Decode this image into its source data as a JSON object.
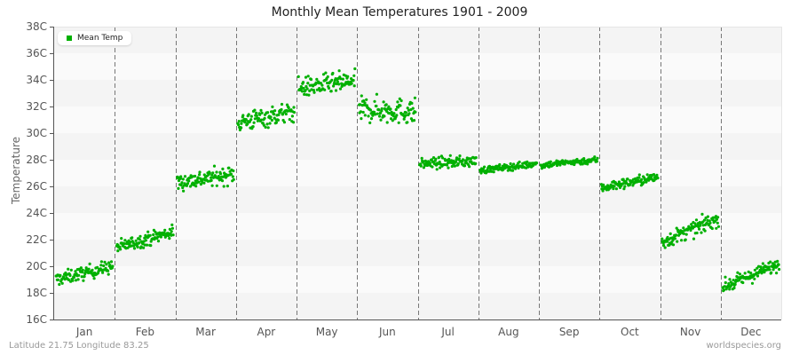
{
  "title": "Monthly Mean Temperatures 1901 - 2009",
  "y_axis_label": "Temperature",
  "legend_label": "Mean Temp",
  "footer_left": "Latitude 21.75 Longitude 83.25",
  "footer_right": "worldspecies.org",
  "colors": {
    "points": "#00b000",
    "band_dark": "#f4f4f4",
    "band_light": "#fafafa",
    "divider": "#777777"
  },
  "chart_data": {
    "type": "scatter",
    "title": "Monthly Mean Temperatures 1901 - 2009",
    "xlabel": "",
    "ylabel": "Temperature",
    "ylim": [
      16,
      38
    ],
    "yticks": [
      "16C",
      "18C",
      "20C",
      "22C",
      "24C",
      "26C",
      "28C",
      "30C",
      "32C",
      "34C",
      "36C",
      "38C"
    ],
    "categories": [
      "Jan",
      "Feb",
      "Mar",
      "Apr",
      "May",
      "Jun",
      "Jul",
      "Aug",
      "Sep",
      "Oct",
      "Nov",
      "Dec"
    ],
    "legend": [
      "Mean Temp"
    ],
    "legend_position": "top-left",
    "grid": "alternating horizontal bands, dashed vertical month dividers",
    "points_per_month": 109,
    "series": [
      {
        "name": "Mean Temp",
        "month_ranges": [
          {
            "month": "Jan",
            "start_mean": 19.0,
            "end_mean": 20.0,
            "spread": 1.6,
            "min": 18.0,
            "max": 21.0
          },
          {
            "month": "Feb",
            "start_mean": 21.4,
            "end_mean": 22.6,
            "spread": 1.6,
            "min": 20.2,
            "max": 23.9
          },
          {
            "month": "Mar",
            "start_mean": 26.3,
            "end_mean": 26.9,
            "spread": 2.0,
            "min": 24.2,
            "max": 28.8
          },
          {
            "month": "Apr",
            "start_mean": 30.8,
            "end_mean": 31.6,
            "spread": 2.4,
            "min": 28.9,
            "max": 33.2
          },
          {
            "month": "May",
            "start_mean": 33.4,
            "end_mean": 33.9,
            "spread": 2.4,
            "min": 31.3,
            "max": 37.0
          },
          {
            "month": "Jun",
            "start_mean": 31.8,
            "end_mean": 31.6,
            "spread": 3.0,
            "min": 28.6,
            "max": 34.5
          },
          {
            "month": "Jul",
            "start_mean": 27.7,
            "end_mean": 27.9,
            "spread": 1.3,
            "min": 26.5,
            "max": 29.6
          },
          {
            "month": "Aug",
            "start_mean": 27.2,
            "end_mean": 27.7,
            "spread": 0.8,
            "min": 26.7,
            "max": 28.7
          },
          {
            "month": "Sep",
            "start_mean": 27.6,
            "end_mean": 28.0,
            "spread": 0.8,
            "min": 27.1,
            "max": 28.9
          },
          {
            "month": "Oct",
            "start_mean": 25.9,
            "end_mean": 26.7,
            "spread": 1.2,
            "min": 24.6,
            "max": 28.4
          },
          {
            "month": "Nov",
            "start_mean": 21.8,
            "end_mean": 23.6,
            "spread": 1.8,
            "min": 20.4,
            "max": 25.1
          },
          {
            "month": "Dec",
            "start_mean": 18.4,
            "end_mean": 20.2,
            "spread": 1.6,
            "min": 17.1,
            "max": 21.2
          }
        ]
      }
    ]
  }
}
